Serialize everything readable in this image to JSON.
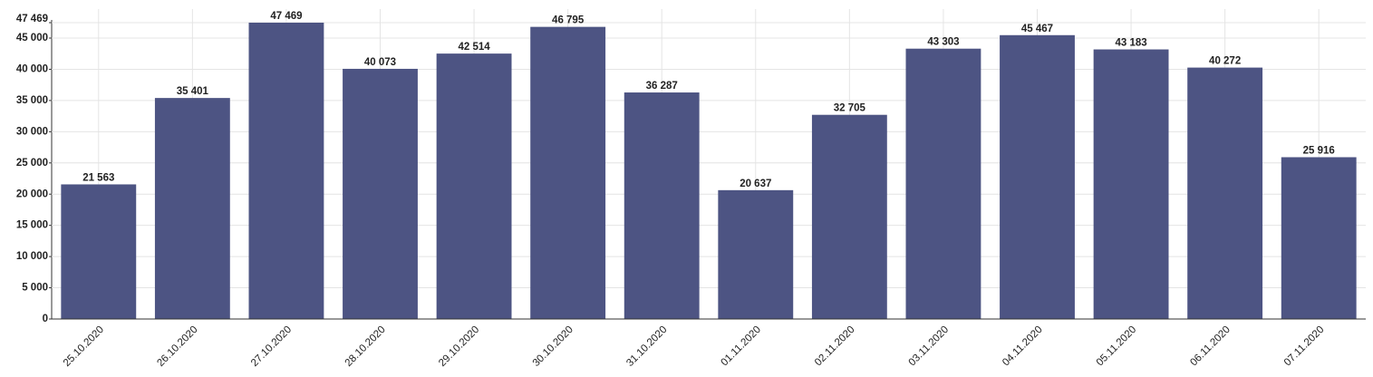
{
  "chart_data": {
    "type": "bar",
    "categories": [
      "25.10.2020",
      "26.10.2020",
      "27.10.2020",
      "28.10.2020",
      "29.10.2020",
      "30.10.2020",
      "31.10.2020",
      "01.11.2020",
      "02.11.2020",
      "03.11.2020",
      "04.11.2020",
      "05.11.2020",
      "06.11.2020",
      "07.11.2020"
    ],
    "values": [
      21563,
      35401,
      47469,
      40073,
      42514,
      46795,
      36287,
      20637,
      32705,
      43303,
      45467,
      43183,
      40272,
      25916
    ],
    "value_labels": [
      "21 563",
      "35 401",
      "47 469",
      "40 073",
      "42 514",
      "46 795",
      "36 287",
      "20 637",
      "32 705",
      "43 303",
      "45 467",
      "43 183",
      "40 272",
      "25 916"
    ],
    "color": "#4d5483",
    "ylim": [
      0,
      47469
    ],
    "yticks": [
      0,
      {
        "value": 5000,
        "label": "5 000"
      },
      {
        "value": 10000,
        "label": "10 000"
      },
      {
        "value": 15000,
        "label": "15 000"
      },
      {
        "value": 20000,
        "label": "20 000"
      },
      {
        "value": 25000,
        "label": "25 000"
      },
      {
        "value": 30000,
        "label": "30 000"
      },
      {
        "value": 35000,
        "label": "35 000"
      },
      {
        "value": 40000,
        "label": "40 000"
      },
      {
        "value": 45000,
        "label": "45 000"
      },
      {
        "value": 47469,
        "label": "47 469"
      }
    ],
    "grid": true
  }
}
